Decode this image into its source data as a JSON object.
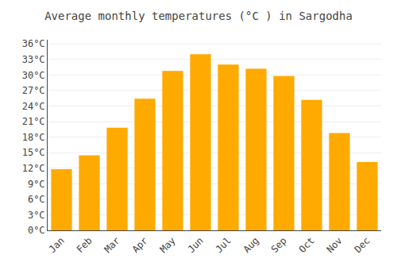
{
  "chart_data": {
    "type": "bar",
    "title": "Average monthly temperatures (°C ) in Sargodha",
    "categories": [
      "Jan",
      "Feb",
      "Mar",
      "Apr",
      "May",
      "Jun",
      "Jul",
      "Aug",
      "Sep",
      "Oct",
      "Nov",
      "Dec"
    ],
    "values": [
      11.8,
      14.5,
      19.8,
      25.4,
      30.8,
      34.0,
      32.0,
      31.2,
      29.8,
      25.2,
      18.8,
      13.2
    ],
    "color": "#FFAA00",
    "ylim": [
      0,
      36.8
    ],
    "yticks": [
      {
        "value": 0,
        "label": "0°C"
      },
      {
        "value": 3,
        "label": "3°C"
      },
      {
        "value": 6,
        "label": "6°C"
      },
      {
        "value": 9,
        "label": "9°C"
      },
      {
        "value": 12,
        "label": "12°C"
      },
      {
        "value": 15,
        "label": "15°C"
      },
      {
        "value": 18,
        "label": "18°C"
      },
      {
        "value": 21,
        "label": "21°C"
      },
      {
        "value": 24,
        "label": "24°C"
      },
      {
        "value": 27,
        "label": "27°C"
      },
      {
        "value": 30,
        "label": "30°C"
      },
      {
        "value": 33,
        "label": "33°C"
      },
      {
        "value": 36,
        "label": "36°C"
      }
    ],
    "grid": true
  }
}
